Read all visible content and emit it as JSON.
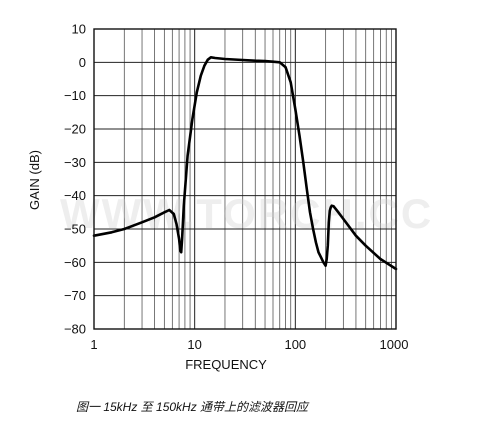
{
  "chart_data": {
    "type": "line",
    "xscale": "log",
    "xlim": [
      1,
      1000
    ],
    "ylim": [
      -80,
      10
    ],
    "xticks": [
      1,
      10,
      100,
      1000
    ],
    "xtick_labels": [
      "1",
      "10",
      "100",
      "1000"
    ],
    "yticks": [
      10,
      0,
      -10,
      -20,
      -30,
      -40,
      -50,
      -60,
      -70,
      -80
    ],
    "ytick_labels": [
      "10",
      "0",
      "−10",
      "−20",
      "−30",
      "−40",
      "−50",
      "−60",
      "−70",
      "−80"
    ],
    "xlabel": "FREQUENCY",
    "ylabel": "GAIN (dB)",
    "grid": true,
    "series": [
      {
        "x": [
          1,
          1.5,
          2,
          3,
          4,
          5,
          5.6,
          6.2,
          6.6,
          7.0,
          7.2,
          7.35,
          7.5,
          7.8,
          8.5,
          9.5,
          10.5,
          11.5,
          12.5,
          13.5,
          14.5,
          16,
          20,
          30,
          40,
          50,
          60,
          70,
          80,
          90,
          100,
          110,
          120,
          130,
          140,
          150,
          160,
          170,
          180,
          190,
          200,
          205,
          210,
          215,
          220,
          225,
          230,
          240,
          260,
          300,
          400,
          500,
          700,
          1000
        ],
        "y": [
          -52,
          -51,
          -50,
          -48,
          -46.5,
          -45,
          -44.3,
          -45.5,
          -48.5,
          -53,
          -56.5,
          -57,
          -53,
          -43,
          -28,
          -17,
          -9,
          -4,
          -1,
          0.8,
          1.5,
          1.3,
          1,
          0.7,
          0.5,
          0.4,
          0.2,
          0,
          -1.5,
          -6,
          -14,
          -22,
          -30,
          -38,
          -45,
          -50,
          -54,
          -57,
          -58.5,
          -60,
          -61,
          -59,
          -55,
          -48,
          -44.5,
          -43.5,
          -43,
          -43.2,
          -44.5,
          -47,
          -52,
          -55,
          -59,
          -62
        ]
      }
    ]
  },
  "watermark": "WWW.TORCH.CC",
  "caption": "图一 15kHz 至 150kHz 通带上的滤波器回应"
}
